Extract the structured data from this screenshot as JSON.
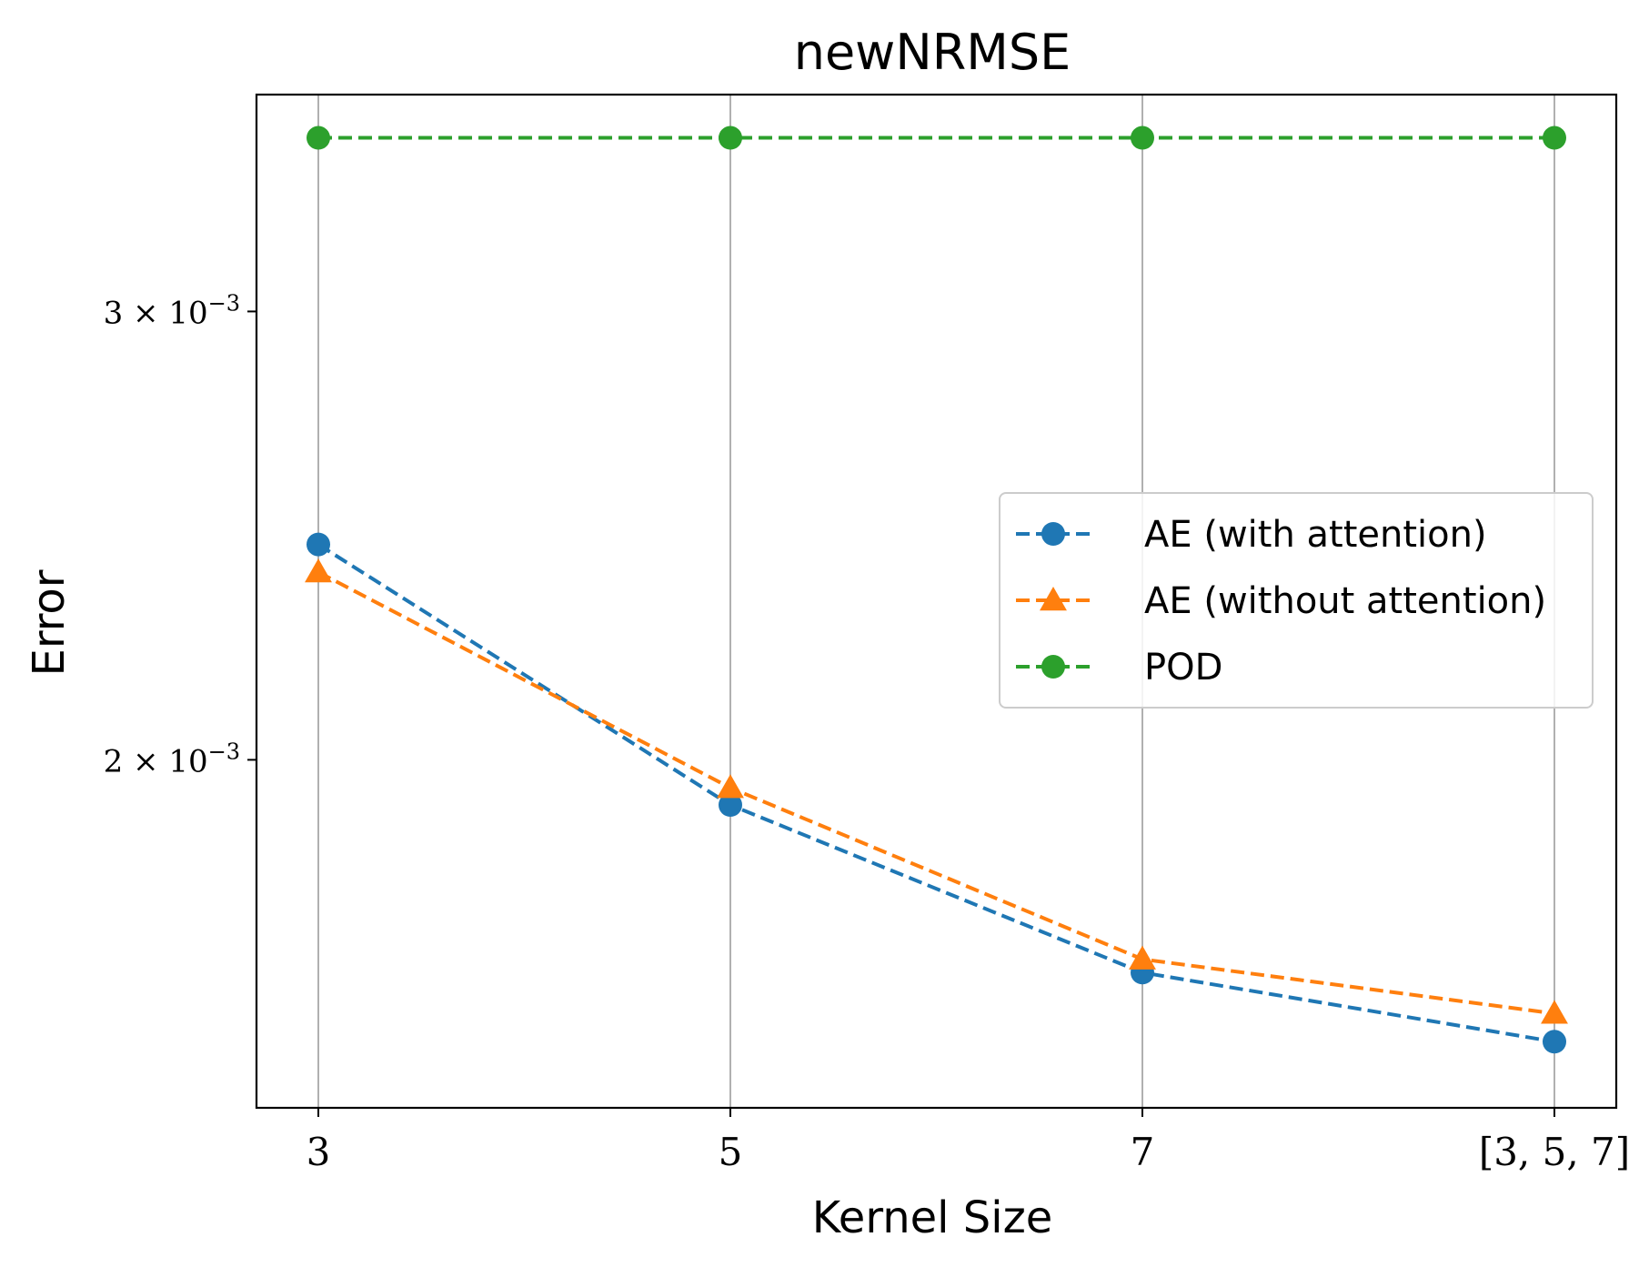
{
  "chart_data": {
    "type": "line",
    "title": "newNRMSE",
    "xlabel": "Kernel Size",
    "ylabel": "Error",
    "categories": [
      "3",
      "5",
      "7",
      "[3, 5, 7]"
    ],
    "yscale": "log",
    "ylim": [
      0.00146,
      0.00365
    ],
    "yticks": [
      {
        "value": 0.002,
        "label": "2 × 10",
        "exp": "−3"
      },
      {
        "value": 0.003,
        "label": "3 × 10",
        "exp": "−3"
      }
    ],
    "grid": "vertical",
    "legend_position": "center-right",
    "series": [
      {
        "name": "AE (with attention)",
        "values": [
          0.00243,
          0.00192,
          0.00165,
          0.00155
        ],
        "color": "#1f77b4",
        "marker": "circle",
        "linestyle": "dashed"
      },
      {
        "name": "AE (without attention)",
        "values": [
          0.00237,
          0.00195,
          0.00167,
          0.00159
        ],
        "color": "#ff7f0e",
        "marker": "triangle",
        "linestyle": "dashed"
      },
      {
        "name": "POD",
        "values": [
          0.00351,
          0.00351,
          0.00351,
          0.00351
        ],
        "color": "#2ca02c",
        "marker": "circle",
        "linestyle": "dashed"
      }
    ]
  }
}
